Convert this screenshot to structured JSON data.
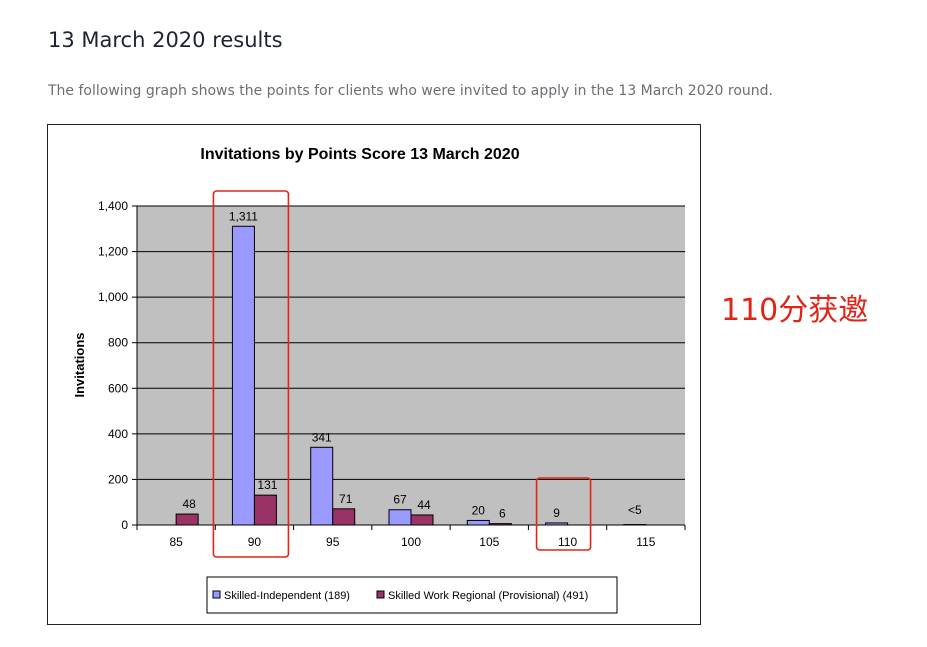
{
  "page": {
    "heading": "13 March 2020 results",
    "intro": "The following graph shows the points for clients who were invited to apply in the 13 March 2020 round.",
    "annotation": "110分获邀"
  },
  "colors": {
    "series1": "#9999ff",
    "series2": "#993366",
    "plot_bg": "#c0c0c0",
    "highlight": "#e02518"
  },
  "chart_data": {
    "type": "bar",
    "title": "Invitations by Points Score 13 March 2020",
    "xlabel": "",
    "ylabel": "Invitations",
    "ylim": [
      0,
      1400
    ],
    "yticks": [
      "0",
      "200",
      "400",
      "600",
      "800",
      "1,000",
      "1,200",
      "1,400"
    ],
    "categories": [
      "85",
      "90",
      "95",
      "100",
      "105",
      "110",
      "115"
    ],
    "series": [
      {
        "name": "Skilled-Independent (189)",
        "values": [
          0,
          1311,
          341,
          67,
          20,
          9,
          2
        ],
        "labels": [
          "",
          "1,311",
          "341",
          "67",
          "20",
          "9",
          "<5"
        ]
      },
      {
        "name": "Skilled Work Regional (Provisional) (491)",
        "values": [
          48,
          131,
          71,
          44,
          6,
          0,
          0
        ],
        "labels": [
          "48",
          "131",
          "71",
          "44",
          "6",
          "",
          ""
        ]
      }
    ],
    "grid": true,
    "legend": "bottom",
    "highlighted_categories": [
      "90",
      "110"
    ]
  }
}
